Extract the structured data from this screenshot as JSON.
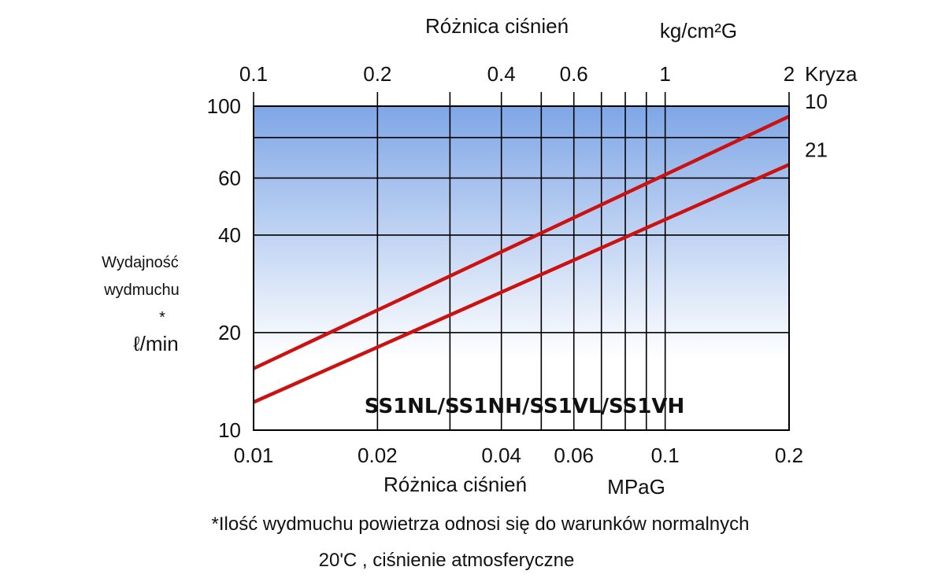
{
  "chart_data": {
    "type": "line",
    "x_scale": "log",
    "y_scale": "log",
    "xlim": [
      0.01,
      0.2
    ],
    "ylim": [
      10,
      100
    ],
    "grid": true,
    "top_axis": {
      "title": "Różnica ciśnień",
      "unit": "kg/cm²G",
      "ticks": [
        {
          "label": "0.1",
          "value": 0.1
        },
        {
          "label": "0.2",
          "value": 0.2
        },
        {
          "label": "0.4",
          "value": 0.4
        },
        {
          "label": "0.6",
          "value": 0.6
        },
        {
          "label": "1",
          "value": 1
        },
        {
          "label": "2",
          "value": 2
        }
      ],
      "minor_values": [
        0.3,
        0.5,
        0.7,
        0.8,
        0.9
      ]
    },
    "bottom_axis": {
      "title": "Różnica ciśnień",
      "unit": "MPaG",
      "ticks": [
        {
          "label": "0.01",
          "value": 0.01
        },
        {
          "label": "0.02",
          "value": 0.02
        },
        {
          "label": "0.04",
          "value": 0.04
        },
        {
          "label": "0.06",
          "value": 0.06
        },
        {
          "label": "0.1",
          "value": 0.1
        },
        {
          "label": "0.2",
          "value": 0.2
        }
      ],
      "minor_values": [
        0.03,
        0.05,
        0.07,
        0.08,
        0.09
      ]
    },
    "y_axis": {
      "label_lines": [
        "Wydajność",
        "wydmuchu",
        "*",
        "ℓ/min"
      ],
      "ticks": [
        {
          "label": "100",
          "value": 100
        },
        {
          "label": "60",
          "value": 60
        },
        {
          "label": "40",
          "value": 40
        },
        {
          "label": "20",
          "value": 20
        },
        {
          "label": "10",
          "value": 10
        }
      ],
      "minor_values": [
        80
      ]
    },
    "series_group_label": "Kryza",
    "series": [
      {
        "name": "10",
        "color": "#cc1111",
        "x": [
          0.01,
          0.2
        ],
        "y": [
          15.5,
          93
        ]
      },
      {
        "name": "21",
        "color": "#cc1111",
        "x": [
          0.01,
          0.2
        ],
        "y": [
          12.2,
          66
        ]
      }
    ],
    "annotation": "SS1NL/SS1NH/SS1VL/SS1VH",
    "footnote": {
      "line1": "*Ilość wydmuchu powietrza odnosi się do warunków normalnych",
      "line2": "20'C , ciśnienie atmosferyczne"
    },
    "colors": {
      "gradient_top": "#7fa6e6",
      "gradient_bottom": "#ffffff",
      "grid": "#000000",
      "series": "#cc1111"
    }
  }
}
